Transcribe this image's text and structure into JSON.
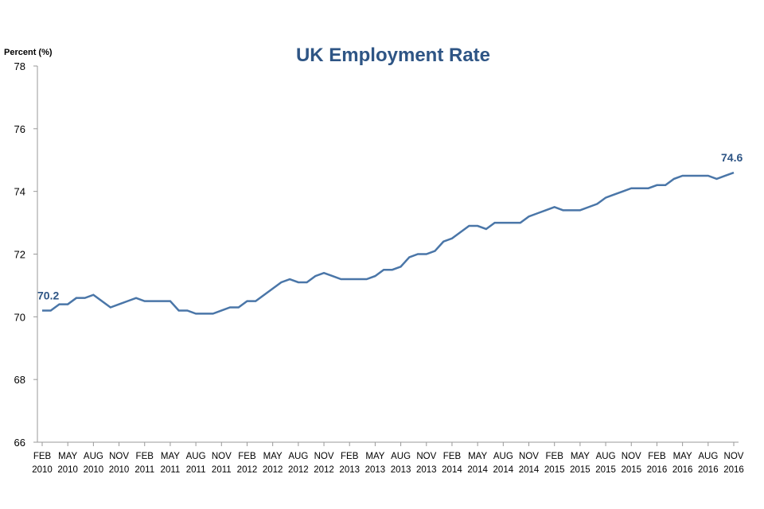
{
  "chart_data": {
    "type": "line",
    "title": "UK Employment Rate",
    "ylabel": "Percent (%)",
    "xlabel": "",
    "ylim": [
      66,
      78
    ],
    "yticks": [
      66,
      68,
      70,
      72,
      74,
      76,
      78
    ],
    "grid": false,
    "line_color": "#4a76a8",
    "title_color": "#2e5585",
    "x_tick_labels": [
      [
        "FEB",
        "2010"
      ],
      [
        "MAY",
        "2010"
      ],
      [
        "AUG",
        "2010"
      ],
      [
        "NOV",
        "2010"
      ],
      [
        "FEB",
        "2011"
      ],
      [
        "MAY",
        "2011"
      ],
      [
        "AUG",
        "2011"
      ],
      [
        "NOV",
        "2011"
      ],
      [
        "FEB",
        "2012"
      ],
      [
        "MAY",
        "2012"
      ],
      [
        "AUG",
        "2012"
      ],
      [
        "NOV",
        "2012"
      ],
      [
        "FEB",
        "2013"
      ],
      [
        "MAY",
        "2013"
      ],
      [
        "AUG",
        "2013"
      ],
      [
        "NOV",
        "2013"
      ],
      [
        "FEB",
        "2014"
      ],
      [
        "MAY",
        "2014"
      ],
      [
        "AUG",
        "2014"
      ],
      [
        "NOV",
        "2014"
      ],
      [
        "FEB",
        "2015"
      ],
      [
        "MAY",
        "2015"
      ],
      [
        "AUG",
        "2015"
      ],
      [
        "NOV",
        "2015"
      ],
      [
        "FEB",
        "2016"
      ],
      [
        "MAY",
        "2016"
      ],
      [
        "AUG",
        "2016"
      ],
      [
        "NOV",
        "2016"
      ]
    ],
    "series": [
      {
        "name": "Employment rate",
        "start": "Feb 2010",
        "frequency": "monthly",
        "values": [
          70.2,
          70.2,
          70.4,
          70.4,
          70.6,
          70.6,
          70.7,
          70.5,
          70.3,
          70.4,
          70.5,
          70.6,
          70.5,
          70.5,
          70.5,
          70.5,
          70.2,
          70.2,
          70.1,
          70.1,
          70.1,
          70.2,
          70.3,
          70.3,
          70.5,
          70.5,
          70.7,
          70.9,
          71.1,
          71.2,
          71.1,
          71.1,
          71.3,
          71.4,
          71.3,
          71.2,
          71.2,
          71.2,
          71.2,
          71.3,
          71.5,
          71.5,
          71.6,
          71.9,
          72.0,
          72.0,
          72.1,
          72.4,
          72.5,
          72.7,
          72.9,
          72.9,
          72.8,
          73.0,
          73.0,
          73.0,
          73.0,
          73.2,
          73.3,
          73.4,
          73.5,
          73.4,
          73.4,
          73.4,
          73.5,
          73.6,
          73.8,
          73.9,
          74.0,
          74.1,
          74.1,
          74.1,
          74.2,
          74.2,
          74.4,
          74.5,
          74.5,
          74.5,
          74.5,
          74.4,
          74.5,
          74.6
        ]
      }
    ],
    "annotations": {
      "first": "70.2",
      "last": "74.6"
    }
  }
}
